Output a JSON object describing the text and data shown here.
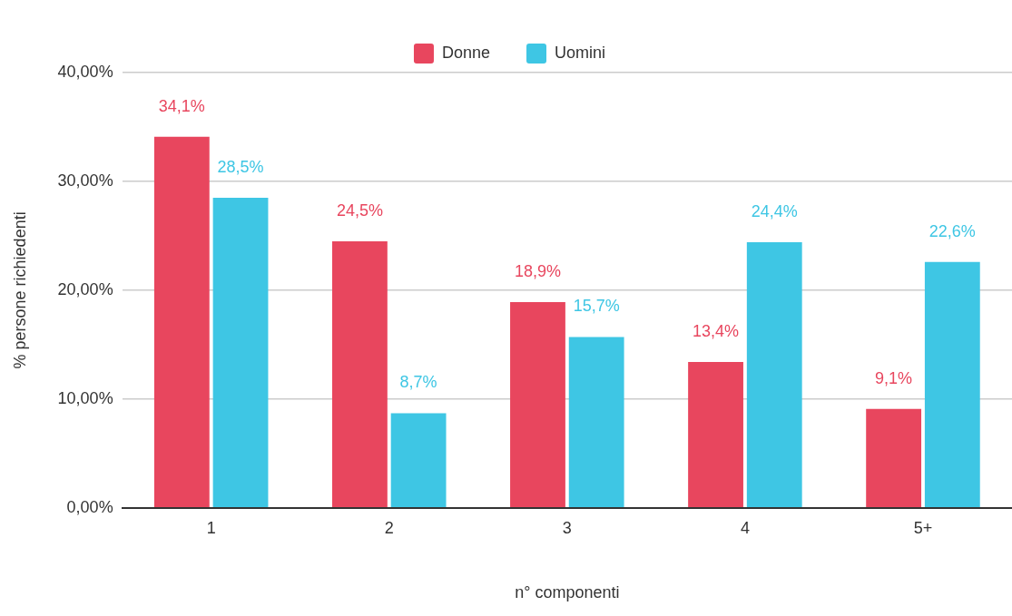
{
  "chart_data": {
    "type": "bar",
    "xlabel": "n° componenti",
    "ylabel": "% persone richiedenti",
    "categories": [
      "1",
      "2",
      "3",
      "4",
      "5+"
    ],
    "series": [
      {
        "name": "Donne",
        "color": "#e8465e",
        "values": [
          34.1,
          24.5,
          18.9,
          13.4,
          9.1
        ],
        "value_labels": [
          "34,1%",
          "24,5%",
          "18,9%",
          "13,4%",
          "9,1%"
        ]
      },
      {
        "name": "Uomini",
        "color": "#3ec6e4",
        "values": [
          28.5,
          8.7,
          15.7,
          24.4,
          22.6
        ],
        "value_labels": [
          "28,5%",
          "8,7%",
          "15,7%",
          "24,4%",
          "22,6%"
        ]
      }
    ],
    "ylim": [
      0,
      40
    ],
    "yticks": [
      {
        "value": 0,
        "label": "0,00%"
      },
      {
        "value": 10,
        "label": "10,00%"
      },
      {
        "value": 20,
        "label": "20,00%"
      },
      {
        "value": 30,
        "label": "30,00%"
      },
      {
        "value": 40,
        "label": "40,00%"
      }
    ],
    "grid": "y",
    "legend": "top"
  }
}
